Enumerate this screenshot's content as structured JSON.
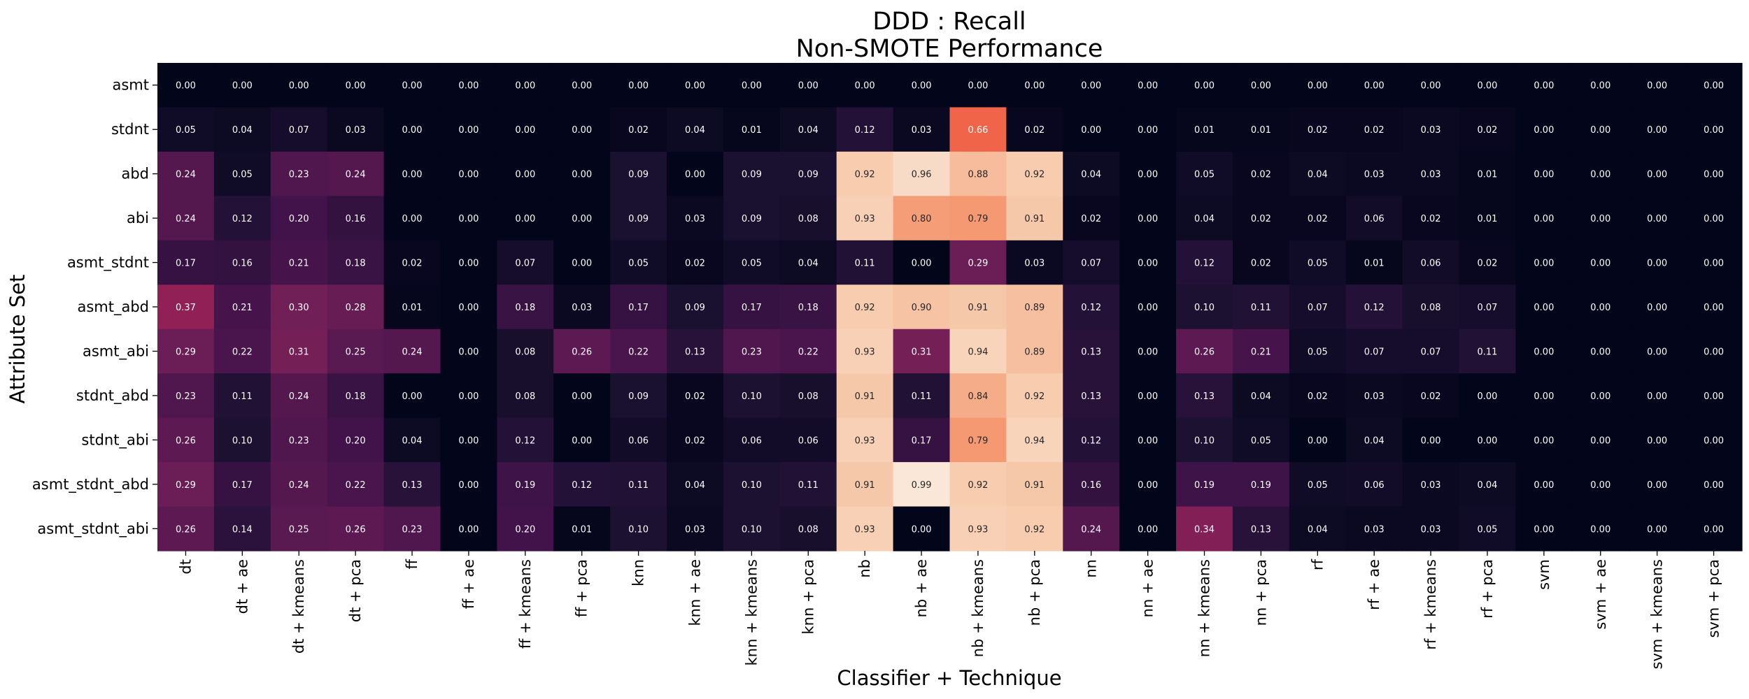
{
  "chart_data": {
    "type": "heatmap",
    "title": "DDD : Recall",
    "subtitle": "Non-SMOTE Performance",
    "xlabel": "Classifier + Technique",
    "ylabel": "Attribute Set",
    "colormap": "rocket",
    "value_range": [
      0,
      1
    ],
    "colorbar": false,
    "x_categories": [
      "dt",
      "dt + ae",
      "dt + kmeans",
      "dt + pca",
      "ff",
      "ff + ae",
      "ff + kmeans",
      "ff + pca",
      "knn",
      "knn + ae",
      "knn + kmeans",
      "knn + pca",
      "nb",
      "nb + ae",
      "nb + kmeans",
      "nb + pca",
      "nn",
      "nn + ae",
      "nn + kmeans",
      "nn + pca",
      "rf",
      "rf + ae",
      "rf + kmeans",
      "rf + pca",
      "svm",
      "svm + ae",
      "svm + kmeans",
      "svm + pca"
    ],
    "y_categories": [
      "asmt",
      "stdnt",
      "abd",
      "abi",
      "asmt_stdnt",
      "asmt_abd",
      "asmt_abi",
      "stdnt_abd",
      "stdnt_abi",
      "asmt_stdnt_abd",
      "asmt_stdnt_abi"
    ],
    "values": [
      [
        0.0,
        0.0,
        0.0,
        0.0,
        0.0,
        0.0,
        0.0,
        0.0,
        0.0,
        0.0,
        0.0,
        0.0,
        0.0,
        0.0,
        0.0,
        0.0,
        0.0,
        0.0,
        0.0,
        0.0,
        0.0,
        0.0,
        0.0,
        0.0,
        0.0,
        0.0,
        0.0,
        0.0
      ],
      [
        0.05,
        0.04,
        0.07,
        0.03,
        0.0,
        0.0,
        0.0,
        0.0,
        0.02,
        0.04,
        0.01,
        0.04,
        0.12,
        0.03,
        0.66,
        0.02,
        0.0,
        0.0,
        0.01,
        0.01,
        0.02,
        0.02,
        0.03,
        0.02,
        0.0,
        0.0,
        0.0,
        0.0
      ],
      [
        0.24,
        0.05,
        0.23,
        0.24,
        0.0,
        0.0,
        0.0,
        0.0,
        0.09,
        0.0,
        0.09,
        0.09,
        0.92,
        0.96,
        0.88,
        0.92,
        0.04,
        0.0,
        0.05,
        0.02,
        0.04,
        0.03,
        0.03,
        0.01,
        0.0,
        0.0,
        0.0,
        0.0
      ],
      [
        0.24,
        0.12,
        0.2,
        0.16,
        0.0,
        0.0,
        0.0,
        0.0,
        0.09,
        0.03,
        0.09,
        0.08,
        0.93,
        0.8,
        0.79,
        0.91,
        0.02,
        0.0,
        0.04,
        0.02,
        0.02,
        0.06,
        0.02,
        0.01,
        0.0,
        0.0,
        0.0,
        0.0
      ],
      [
        0.17,
        0.16,
        0.21,
        0.18,
        0.02,
        0.0,
        0.07,
        0.0,
        0.05,
        0.02,
        0.05,
        0.04,
        0.11,
        0.0,
        0.29,
        0.03,
        0.07,
        0.0,
        0.12,
        0.02,
        0.05,
        0.01,
        0.06,
        0.02,
        0.0,
        0.0,
        0.0,
        0.0
      ],
      [
        0.37,
        0.21,
        0.3,
        0.28,
        0.01,
        0.0,
        0.18,
        0.03,
        0.17,
        0.09,
        0.17,
        0.18,
        0.92,
        0.9,
        0.91,
        0.89,
        0.12,
        0.0,
        0.1,
        0.11,
        0.07,
        0.12,
        0.08,
        0.07,
        0.0,
        0.0,
        0.0,
        0.0
      ],
      [
        0.29,
        0.22,
        0.31,
        0.25,
        0.24,
        0.0,
        0.08,
        0.26,
        0.22,
        0.13,
        0.23,
        0.22,
        0.93,
        0.31,
        0.94,
        0.89,
        0.13,
        0.0,
        0.26,
        0.21,
        0.05,
        0.07,
        0.07,
        0.11,
        0.0,
        0.0,
        0.0,
        0.0
      ],
      [
        0.23,
        0.11,
        0.24,
        0.18,
        0.0,
        0.0,
        0.08,
        0.0,
        0.09,
        0.02,
        0.1,
        0.08,
        0.91,
        0.11,
        0.84,
        0.92,
        0.13,
        0.0,
        0.13,
        0.04,
        0.02,
        0.03,
        0.02,
        0.0,
        0.0,
        0.0,
        0.0,
        0.0
      ],
      [
        0.26,
        0.1,
        0.23,
        0.2,
        0.04,
        0.0,
        0.12,
        0.0,
        0.06,
        0.02,
        0.06,
        0.06,
        0.93,
        0.17,
        0.79,
        0.94,
        0.12,
        0.0,
        0.1,
        0.05,
        0.0,
        0.04,
        0.0,
        0.0,
        0.0,
        0.0,
        0.0,
        0.0
      ],
      [
        0.29,
        0.17,
        0.24,
        0.22,
        0.13,
        0.0,
        0.19,
        0.12,
        0.11,
        0.04,
        0.1,
        0.11,
        0.91,
        0.99,
        0.92,
        0.91,
        0.16,
        0.0,
        0.19,
        0.19,
        0.05,
        0.06,
        0.03,
        0.04,
        0.0,
        0.0,
        0.0,
        0.0
      ],
      [
        0.26,
        0.14,
        0.25,
        0.26,
        0.23,
        0.0,
        0.2,
        0.01,
        0.1,
        0.03,
        0.1,
        0.08,
        0.93,
        0.0,
        0.93,
        0.92,
        0.24,
        0.0,
        0.34,
        0.13,
        0.04,
        0.03,
        0.03,
        0.05,
        0.0,
        0.0,
        0.0,
        0.0
      ]
    ]
  }
}
